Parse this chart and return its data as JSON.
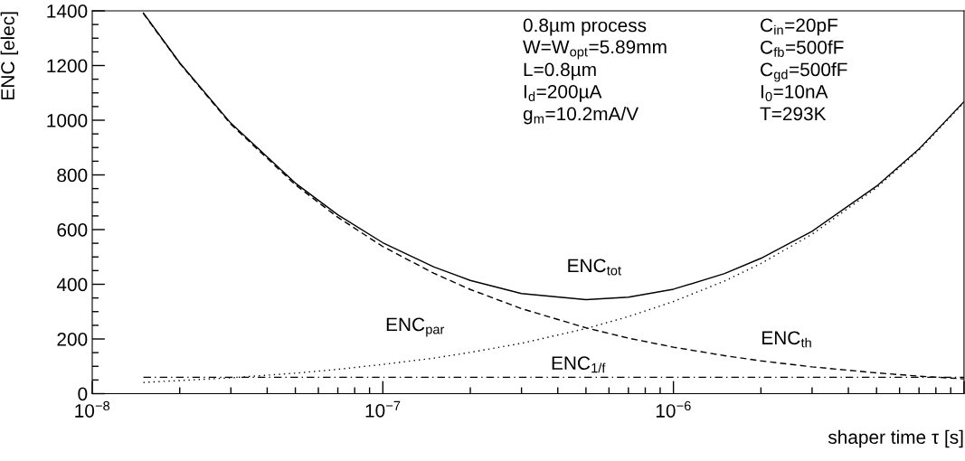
{
  "chart_data": {
    "type": "line",
    "xlabel": "shaper time τ [s]",
    "ylabel": "ENC [elec]",
    "log": "x",
    "xlim": [
      1e-08,
      1e-05
    ],
    "xticks": [
      {
        "value": 1e-08,
        "label": "10$^{−8}$"
      },
      {
        "value": 1e-07,
        "label": "10$^{−7}$"
      },
      {
        "value": 1e-06,
        "label": "10$^{−6}$"
      },
      {
        "value": 1e-05,
        "label": null
      }
    ],
    "ylim": [
      0,
      1400
    ],
    "yticks": [
      0,
      200,
      400,
      600,
      800,
      1000,
      1200,
      1400
    ],
    "grid": false,
    "legend": false,
    "marker": "none",
    "x": [
      1.5e-08,
      2e-08,
      3e-08,
      5e-08,
      7e-08,
      1e-07,
      1.5e-07,
      2e-07,
      3e-07,
      5e-07,
      7e-07,
      1e-06,
      1.5e-06,
      2e-06,
      3e-06,
      5e-06,
      7e-06,
      1e-05
    ],
    "series": [
      {
        "name": "ENC$_{tot}$",
        "color": "#000000",
        "line_style": "solid",
        "values": [
          1392,
          1210,
          989,
          770,
          654,
          552,
          463,
          414,
          366,
          344,
          353,
          382,
          439,
          495,
          594,
          759,
          895,
          1068
        ]
      },
      {
        "name": "ENC$_{th}$",
        "color": "#000000",
        "line_style": "dashed",
        "values": [
          1390,
          1208,
          985,
          764,
          645,
          538,
          440,
          381,
          311,
          241,
          203,
          170,
          139,
          120,
          98,
          76,
          64,
          54
        ]
      },
      {
        "name": "ENC$_{par}$",
        "color": "#000000",
        "line_style": "dotted",
        "values": [
          41,
          48,
          58,
          75,
          89,
          107,
          130,
          151,
          184,
          238,
          282,
          337,
          412,
          476,
          583,
          753,
          891,
          1065
        ]
      },
      {
        "name": "ENC$_{1/f}$",
        "color": "#000000",
        "line_style": "dashdot",
        "values": [
          60,
          60,
          60,
          60,
          60,
          60,
          60,
          60,
          60,
          60,
          60,
          60,
          60,
          60,
          60,
          60,
          60,
          60
        ]
      }
    ],
    "annotations": [
      "0.8µm process",
      "W=W$_{opt}$=5.89mm",
      "L=0.8µm",
      "I$_{d}$=200µA",
      "g$_{m}$=10.2mA/V",
      "C$_{in}$=20pF",
      "C$_{fb}$=500fF",
      "C$_{gd}$=500fF",
      "I$_{0}$=10nA",
      "T=293K"
    ]
  }
}
